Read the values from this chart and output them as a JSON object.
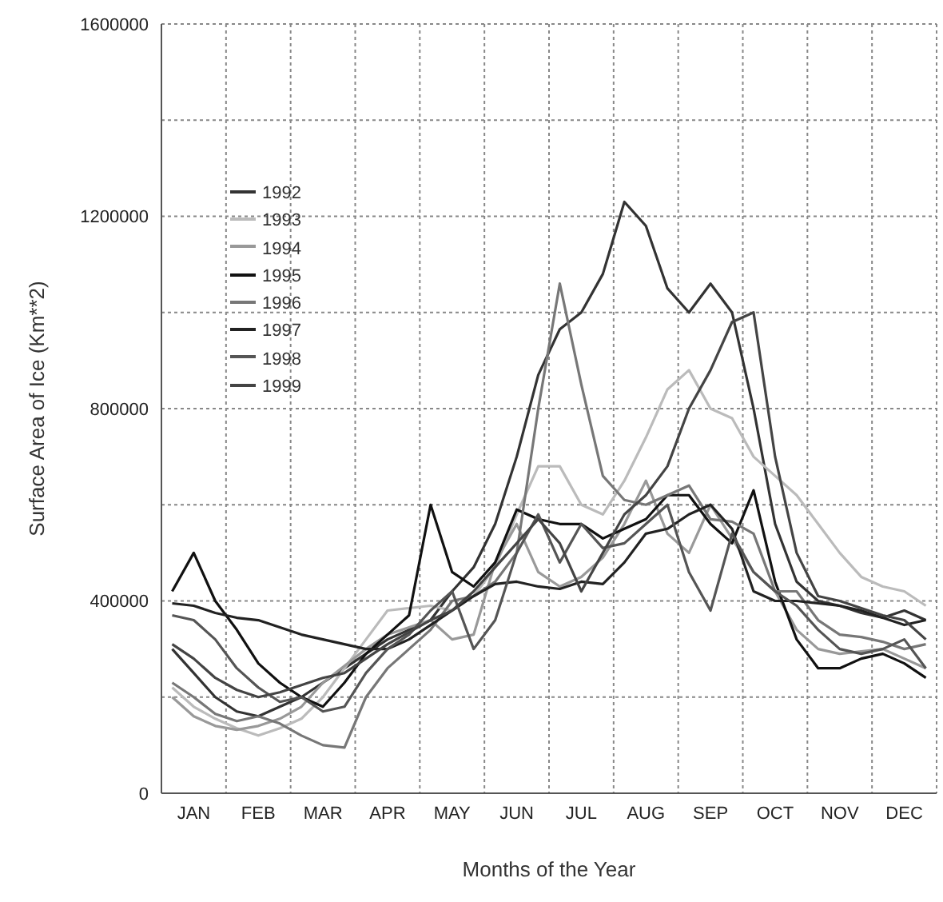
{
  "chart_data": {
    "type": "line",
    "xlabel": "Months of the Year",
    "ylabel": "Surface Area of Ice (Km**2)",
    "categories": [
      null,
      "JAN",
      null,
      null,
      "FEB",
      null,
      null,
      "MAR",
      null,
      null,
      "APR",
      null,
      null,
      "MAY",
      null,
      null,
      "JUN",
      null,
      null,
      "JUL",
      null,
      null,
      "AUG",
      null,
      null,
      "SEP",
      null,
      null,
      "OCT",
      null,
      null,
      "NOV",
      null,
      null,
      "DEC",
      null
    ],
    "ylim": [
      0,
      1600000
    ],
    "yticks": [
      0,
      {
        "value": 200000,
        "label": null
      },
      400000,
      {
        "value": 600000,
        "label": null
      },
      800000,
      {
        "value": 1000000,
        "label": null
      },
      1200000,
      {
        "value": 1400000,
        "label": null
      },
      1600000
    ],
    "grid": true,
    "legend": "top left",
    "line_style": "solid",
    "series": [
      {
        "name": "1992",
        "color": "#333333",
        "values": [
          300000,
          250000,
          200000,
          170000,
          160000,
          180000,
          200000,
          230000,
          260000,
          290000,
          320000,
          340000,
          360000,
          420000,
          470000,
          560000,
          700000,
          870000,
          965000,
          1000000,
          1080000,
          1230000,
          1180000,
          1050000,
          1000000,
          1060000,
          1000000,
          800000,
          560000,
          440000,
          400000,
          390000,
          375000,
          365000,
          380000,
          360000
        ]
      },
      {
        "name": "1993",
        "color": "#bbbbbb",
        "values": [
          220000,
          180000,
          155000,
          135000,
          120000,
          135000,
          155000,
          200000,
          260000,
          320000,
          380000,
          385000,
          390000,
          380000,
          410000,
          470000,
          580000,
          680000,
          680000,
          600000,
          580000,
          650000,
          740000,
          840000,
          880000,
          800000,
          780000,
          700000,
          660000,
          620000,
          560000,
          500000,
          450000,
          430000,
          420000,
          390000
        ]
      },
      {
        "name": "1994",
        "color": "#999999",
        "values": [
          200000,
          160000,
          140000,
          132000,
          140000,
          155000,
          180000,
          230000,
          265000,
          300000,
          330000,
          345000,
          360000,
          320000,
          330000,
          480000,
          560000,
          460000,
          430000,
          450000,
          490000,
          560000,
          650000,
          540000,
          500000,
          600000,
          530000,
          460000,
          420000,
          340000,
          300000,
          290000,
          295000,
          300000,
          280000,
          260000
        ]
      },
      {
        "name": "1995",
        "color": "#111111",
        "values": [
          420000,
          500000,
          400000,
          340000,
          270000,
          230000,
          200000,
          180000,
          230000,
          290000,
          330000,
          370000,
          600000,
          460000,
          430000,
          480000,
          590000,
          570000,
          560000,
          560000,
          530000,
          550000,
          570000,
          620000,
          620000,
          560000,
          520000,
          630000,
          440000,
          320000,
          260000,
          260000,
          280000,
          290000,
          270000,
          240000
        ]
      },
      {
        "name": "1996",
        "color": "#777777",
        "values": [
          230000,
          200000,
          165000,
          150000,
          160000,
          145000,
          120000,
          100000,
          95000,
          200000,
          260000,
          300000,
          340000,
          400000,
          410000,
          440000,
          500000,
          800000,
          1060000,
          850000,
          660000,
          610000,
          600000,
          620000,
          640000,
          570000,
          565000,
          540000,
          420000,
          420000,
          360000,
          330000,
          325000,
          315000,
          300000,
          310000
        ]
      },
      {
        "name": "1997",
        "color": "#222222",
        "values": [
          395000,
          390000,
          375000,
          365000,
          360000,
          345000,
          330000,
          320000,
          310000,
          300000,
          300000,
          320000,
          350000,
          380000,
          410000,
          435000,
          440000,
          430000,
          425000,
          440000,
          435000,
          480000,
          540000,
          550000,
          580000,
          600000,
          550000,
          420000,
          400000,
          400000,
          395000,
          390000,
          380000,
          365000,
          350000,
          360000
        ]
      },
      {
        "name": "1998",
        "color": "#555555",
        "values": [
          370000,
          360000,
          320000,
          260000,
          220000,
          190000,
          200000,
          170000,
          180000,
          250000,
          300000,
          330000,
          380000,
          420000,
          300000,
          360000,
          500000,
          580000,
          480000,
          560000,
          510000,
          520000,
          560000,
          600000,
          460000,
          380000,
          540000,
          460000,
          420000,
          390000,
          340000,
          300000,
          290000,
          300000,
          320000,
          260000
        ]
      },
      {
        "name": "1999",
        "color": "#444444",
        "values": [
          310000,
          280000,
          240000,
          215000,
          200000,
          210000,
          225000,
          240000,
          250000,
          280000,
          310000,
          335000,
          360000,
          380000,
          420000,
          470000,
          520000,
          570000,
          520000,
          420000,
          500000,
          580000,
          620000,
          680000,
          800000,
          880000,
          980000,
          1000000,
          700000,
          500000,
          410000,
          400000,
          385000,
          370000,
          360000,
          320000
        ]
      }
    ]
  }
}
